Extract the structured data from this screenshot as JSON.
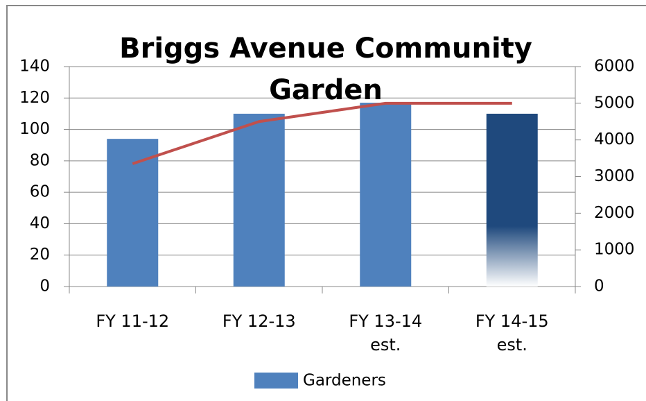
{
  "chart_data": {
    "type": "bar",
    "title": "Briggs Avenue Community Garden",
    "categories": [
      "FY 11-12",
      "FY 12-13",
      "FY 13-14 est.",
      "FY 14-15 est."
    ],
    "series": [
      {
        "name": "Gardeners",
        "type": "bar",
        "color": "#4f81bd",
        "colors": [
          "#4f81bd",
          "#4f81bd",
          "#4f81bd",
          "#1f497d"
        ],
        "values": [
          94,
          110,
          117,
          110
        ]
      },
      {
        "type": "line",
        "axis": "y2",
        "color": "#c0504d",
        "values": [
          3350,
          4500,
          5000,
          5000
        ]
      }
    ],
    "ylim": [
      0,
      140
    ],
    "yticks": [
      0,
      20,
      40,
      60,
      80,
      100,
      120,
      140
    ],
    "y2lim": [
      0,
      6000
    ],
    "y2ticks": [
      0,
      1000,
      2000,
      3000,
      4000,
      5000,
      6000
    ],
    "grid": true,
    "legend": "bottom"
  }
}
